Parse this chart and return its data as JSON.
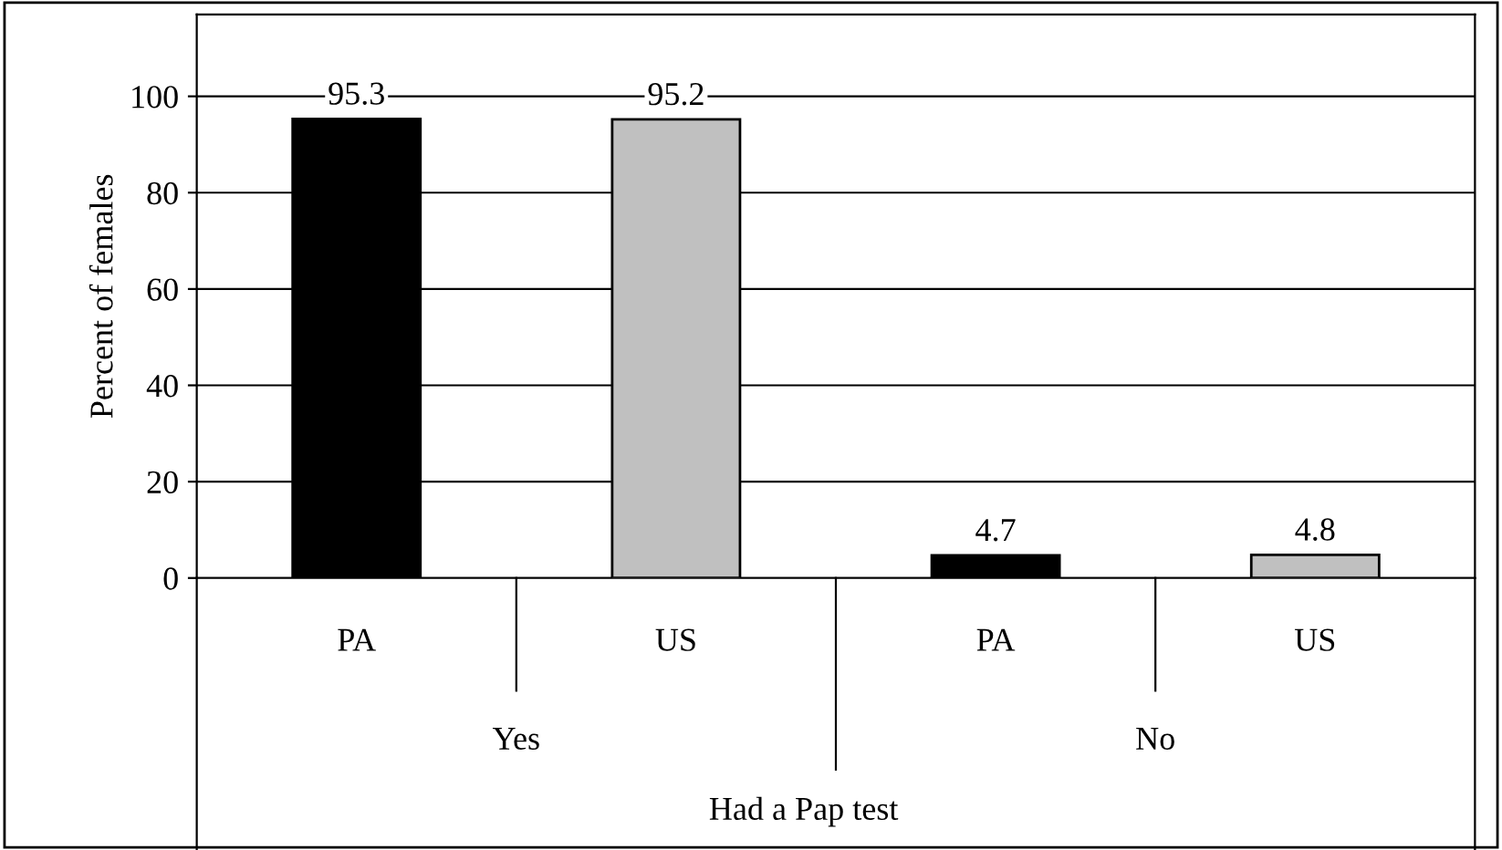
{
  "chart_data": {
    "type": "bar",
    "ylabel": "Percent of females",
    "xlabel": "Had a Pap test",
    "categories": [
      "PA",
      "US",
      "PA",
      "US"
    ],
    "values": [
      95.3,
      95.2,
      4.7,
      4.8
    ],
    "colors": [
      "#000000",
      "#c0c0c0",
      "#000000",
      "#c0c0c0"
    ],
    "annotations": [
      "Yes",
      "No"
    ],
    "ylim": [
      0,
      117
    ],
    "yticks": [
      0,
      20,
      40,
      60,
      80,
      100
    ],
    "grid": "y",
    "data_labels": true,
    "legend": false
  }
}
